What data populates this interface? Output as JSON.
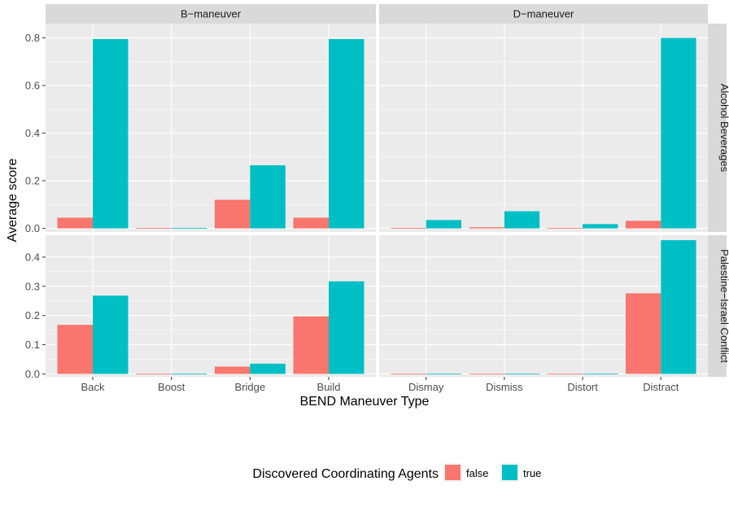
{
  "chart_data": {
    "type": "bar",
    "xlabel": "BEND Maneuver Type",
    "ylabel": "Average score",
    "legend": {
      "title": "Discovered Coordinating Agents",
      "position": "bottom",
      "entries": [
        {
          "label": "false",
          "color": "#F8766D"
        },
        {
          "label": "true",
          "color": "#00BFC4"
        }
      ]
    },
    "facet_columns": [
      "B−maneuver",
      "D−maneuver"
    ],
    "facet_rows": [
      "Alcohol Beverages",
      "Palestine−Israel Conflict"
    ],
    "x_ticks": [
      [
        "Back",
        "Boost",
        "Bridge",
        "Build"
      ],
      [
        "Dismay",
        "Dismiss",
        "Distort",
        "Distract"
      ]
    ],
    "rows": [
      {
        "name": "Alcohol Beverages",
        "ylim": [
          -0.015,
          0.86
        ],
        "y_ticks": [
          0.0,
          0.2,
          0.4,
          0.6,
          0.8
        ],
        "y_tick_labels": [
          "0.0",
          "0.2",
          "0.4",
          "0.6",
          "0.8"
        ],
        "panels": [
          {
            "column": "B−maneuver",
            "categories": [
              "Back",
              "Boost",
              "Bridge",
              "Build"
            ],
            "series": [
              {
                "name": "false",
                "values": [
                  0.045,
                  0.002,
                  0.12,
                  0.045
                ]
              },
              {
                "name": "true",
                "values": [
                  0.795,
                  0.002,
                  0.265,
                  0.795
                ]
              }
            ]
          },
          {
            "column": "D−maneuver",
            "categories": [
              "Dismay",
              "Dismiss",
              "Distort",
              "Distract"
            ],
            "series": [
              {
                "name": "false",
                "values": [
                  0.002,
                  0.005,
                  0.002,
                  0.032
                ]
              },
              {
                "name": "true",
                "values": [
                  0.035,
                  0.072,
                  0.018,
                  0.8
                ]
              }
            ]
          }
        ]
      },
      {
        "name": "Palestine−Israel Conflict",
        "ylim": [
          -0.01,
          0.475
        ],
        "y_ticks": [
          0.0,
          0.1,
          0.2,
          0.3,
          0.4
        ],
        "y_tick_labels": [
          "0.0",
          "0.1",
          "0.2",
          "0.3",
          "0.4"
        ],
        "panels": [
          {
            "column": "B−maneuver",
            "categories": [
              "Back",
              "Boost",
              "Bridge",
              "Build"
            ],
            "series": [
              {
                "name": "false",
                "values": [
                  0.168,
                  0.001,
                  0.025,
                  0.197
                ]
              },
              {
                "name": "true",
                "values": [
                  0.268,
                  0.001,
                  0.035,
                  0.317
                ]
              }
            ]
          },
          {
            "column": "D−maneuver",
            "categories": [
              "Dismay",
              "Dismiss",
              "Distort",
              "Distract"
            ],
            "series": [
              {
                "name": "false",
                "values": [
                  0.001,
                  0.001,
                  0.001,
                  0.276
                ]
              },
              {
                "name": "true",
                "values": [
                  0.001,
                  0.001,
                  0.001,
                  0.458
                ]
              }
            ]
          }
        ]
      }
    ]
  }
}
